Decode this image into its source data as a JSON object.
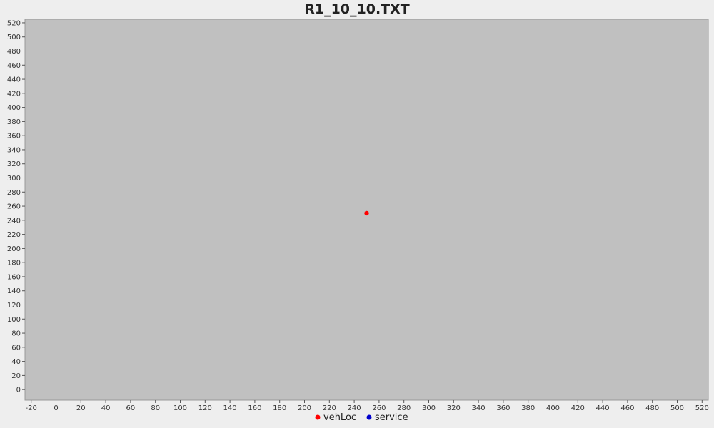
{
  "chart_data": {
    "type": "scatter",
    "title": "R1_10_10.TXT",
    "xlabel": "",
    "ylabel": "",
    "xlim": [
      -25,
      525
    ],
    "ylim": [
      -15,
      525
    ],
    "x_ticks": [
      -20,
      0,
      20,
      40,
      60,
      80,
      100,
      120,
      140,
      160,
      180,
      200,
      220,
      240,
      260,
      280,
      300,
      320,
      340,
      360,
      380,
      400,
      420,
      440,
      460,
      480,
      500,
      520
    ],
    "y_ticks": [
      0,
      20,
      40,
      60,
      80,
      100,
      120,
      140,
      160,
      180,
      200,
      220,
      240,
      260,
      280,
      300,
      320,
      340,
      360,
      380,
      400,
      420,
      440,
      460,
      480,
      500,
      520
    ],
    "grid": false,
    "background": "#c0c0c0",
    "legend_position": "bottom-center",
    "series": [
      {
        "name": "vehLoc",
        "color": "#ff0000",
        "points": [
          {
            "x": 250,
            "y": 250
          }
        ]
      },
      {
        "name": "service",
        "color": "#0000cc",
        "points": []
      }
    ]
  }
}
